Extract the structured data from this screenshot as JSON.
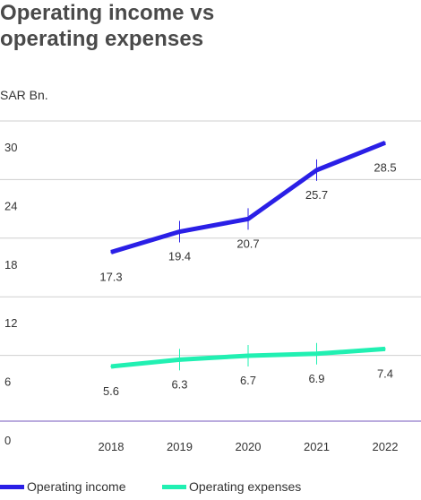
{
  "title_line1": "Operating income vs",
  "title_line2": "operating expenses",
  "chart_data": {
    "type": "line",
    "title": "Operating income vs operating expenses",
    "ylabel": "SAR Bn.",
    "xlabel": "",
    "ylim": [
      0,
      30
    ],
    "yticks": [
      0,
      6,
      12,
      18,
      24,
      30
    ],
    "categories": [
      "2018",
      "2019",
      "2020",
      "2021",
      "2022"
    ],
    "grid": true,
    "legend_position": "bottom-left",
    "series": [
      {
        "name": "Operating income",
        "color": "#2a1fe6",
        "values": [
          17.3,
          19.4,
          20.7,
          25.7,
          28.5
        ]
      },
      {
        "name": "Operating expenses",
        "color": "#21f0b2",
        "values": [
          5.6,
          6.3,
          6.7,
          6.9,
          7.4
        ]
      }
    ]
  }
}
